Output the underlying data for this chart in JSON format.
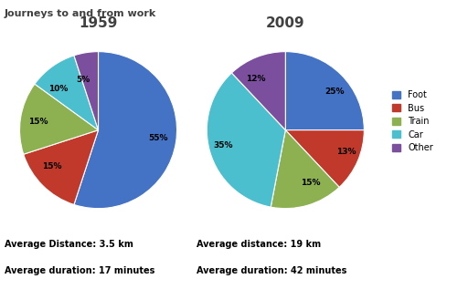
{
  "title": "Journeys to and from work",
  "pie1_title": "1959",
  "pie2_title": "2009",
  "categories": [
    "Foot",
    "Bus",
    "Train",
    "Car",
    "Other"
  ],
  "colors": [
    "#4472C4",
    "#C0392B",
    "#8DB050",
    "#4BBFCE",
    "#7B4F9E"
  ],
  "pie1_values": [
    55,
    15,
    15,
    10,
    5
  ],
  "pie2_values": [
    25,
    13,
    15,
    35,
    12
  ],
  "pie1_labels": [
    "55%",
    "15%",
    "15%",
    "10%",
    "5%"
  ],
  "pie2_labels": [
    "25%",
    "13%",
    "15%",
    "35%",
    "12%"
  ],
  "pie1_startangle": 90,
  "pie2_startangle": 90,
  "avg_dist_1": "Average Distance: 3.5 km",
  "avg_dur_1": "Average duration: 17 minutes",
  "avg_dist_2": "Average distance: 19 km",
  "avg_dur_2": "Average duration: 42 minutes",
  "bg_color": "#FFFFFF",
  "title_color": "#404040",
  "pie_title_color": "#404040",
  "label_fontsize": 6.5,
  "legend_fontsize": 7
}
